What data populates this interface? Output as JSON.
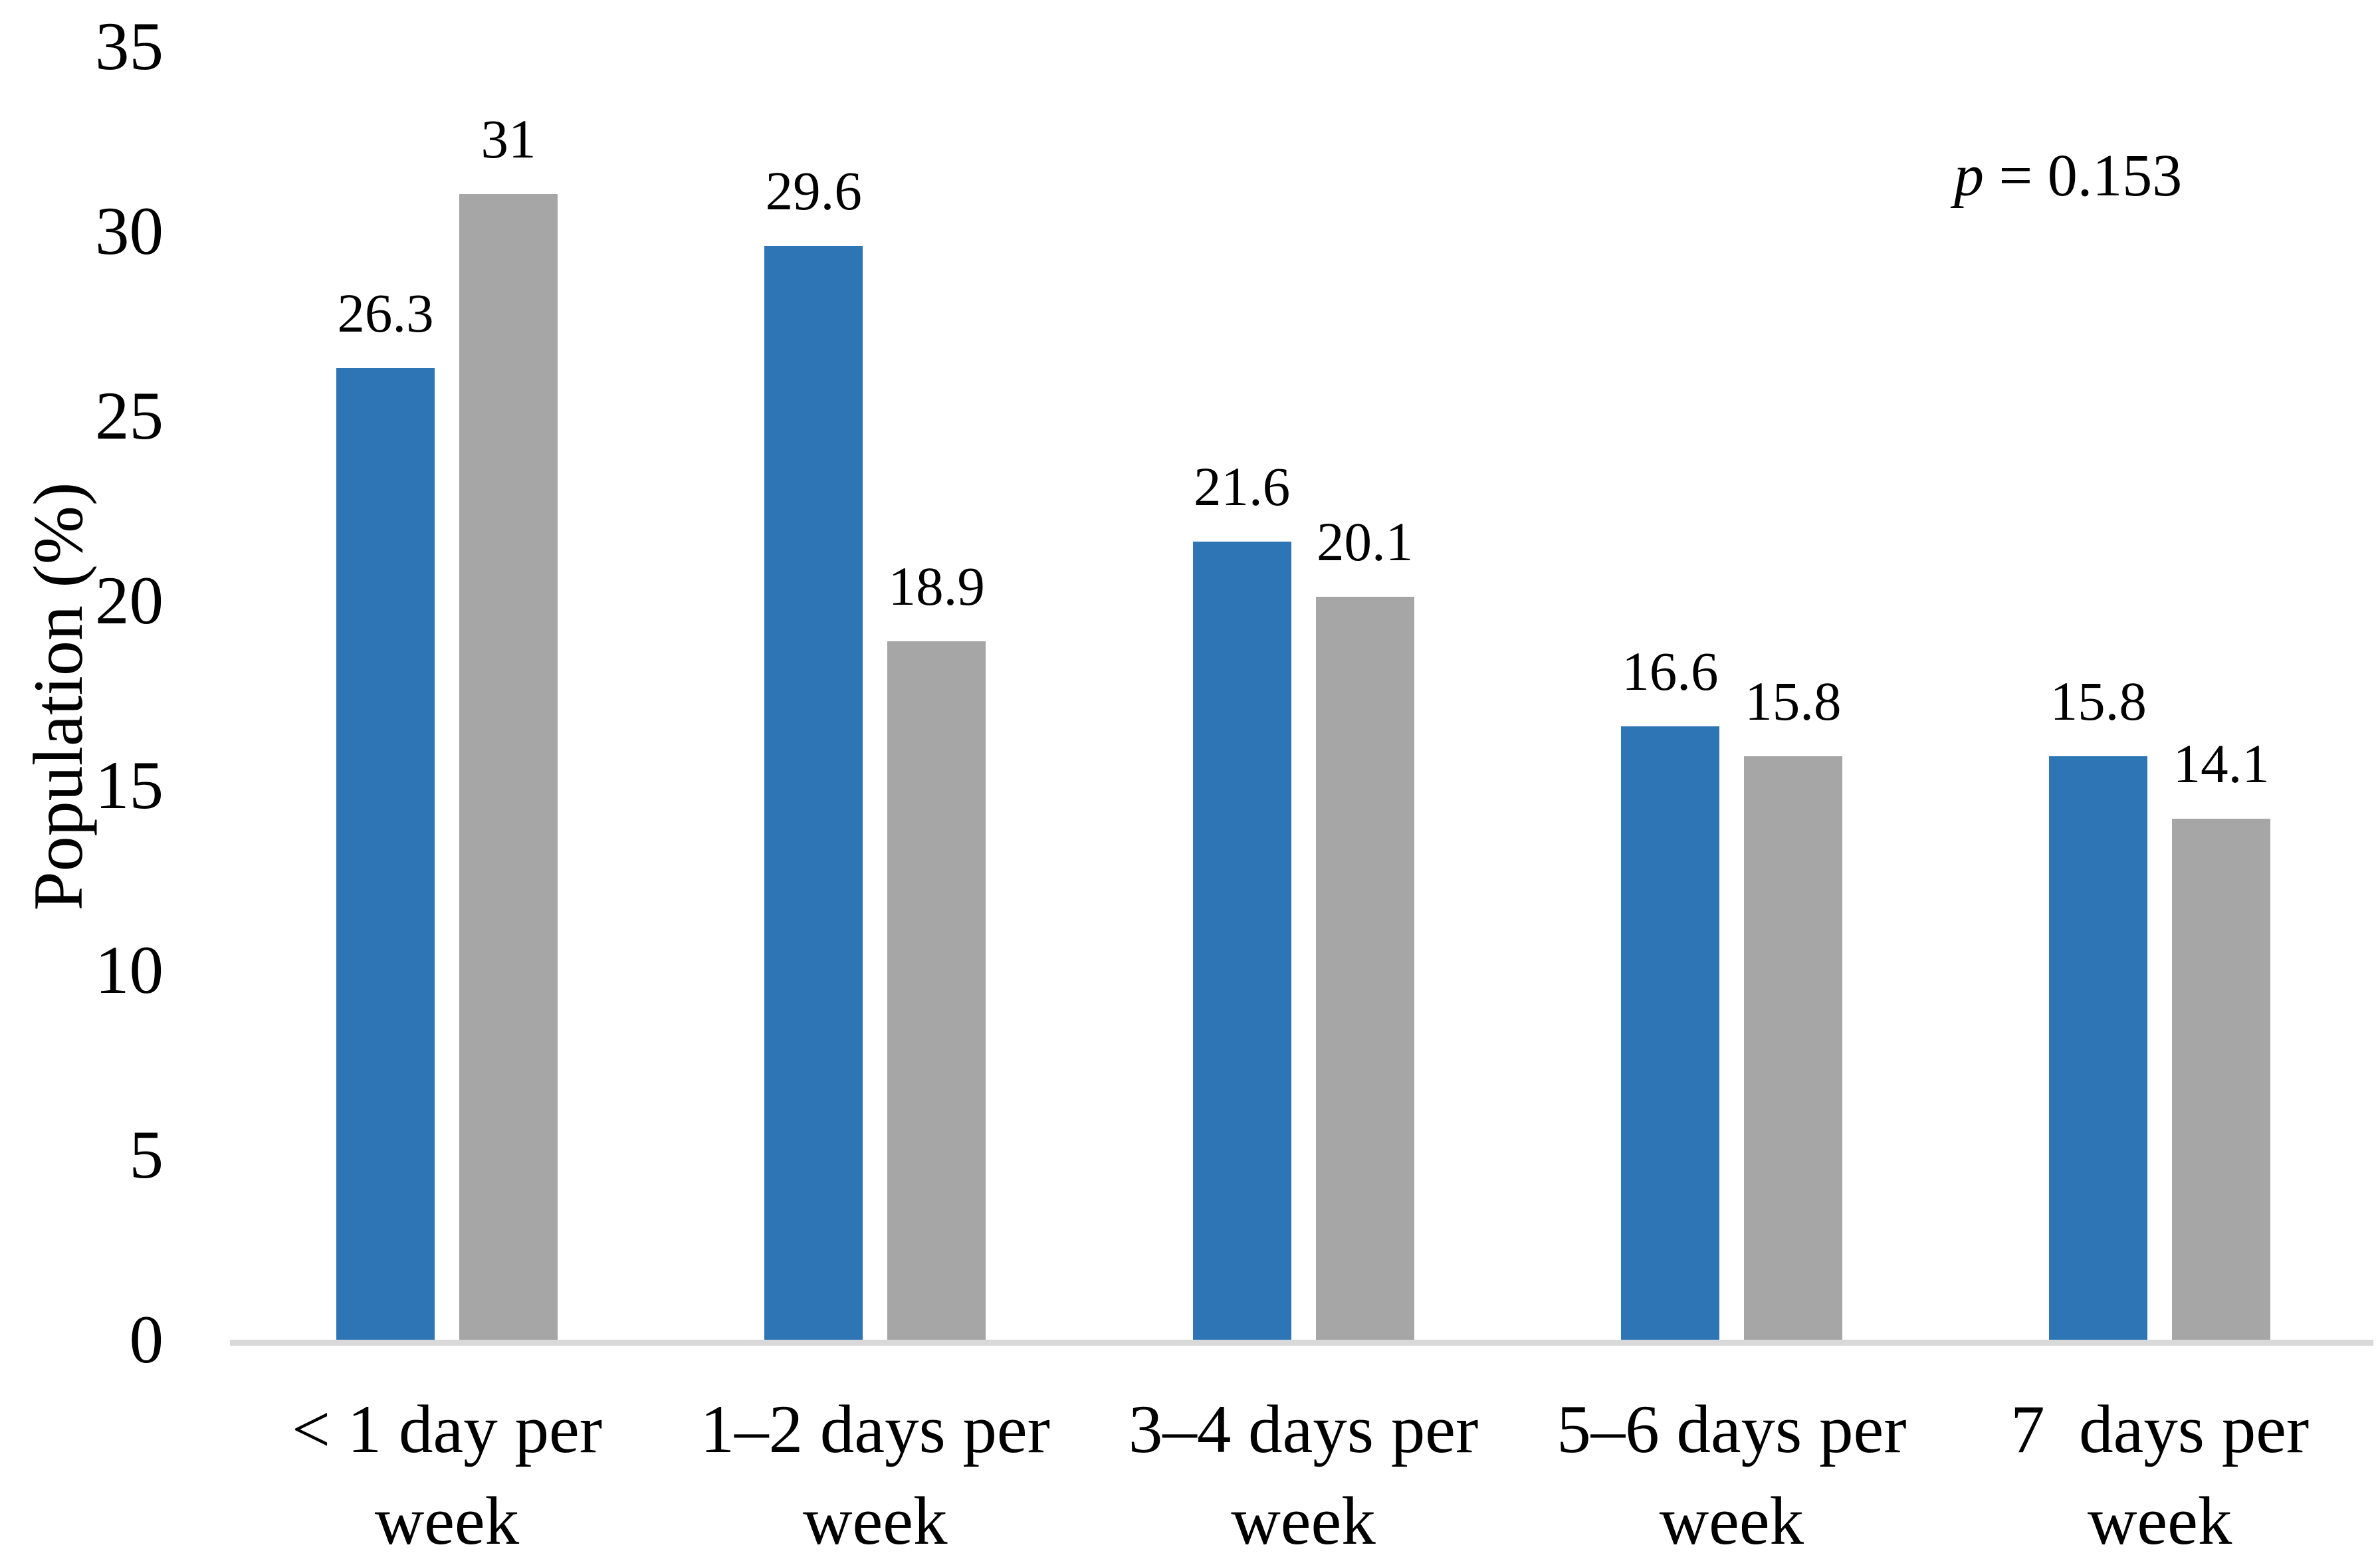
{
  "figure": {
    "background_color": "#ffffff",
    "text_color": "#000000",
    "annotation": {
      "symbol": "p",
      "rest": " = 0.153",
      "full_text": "p = 0.153"
    }
  },
  "chart_data": {
    "type": "bar",
    "title": "",
    "xlabel": "",
    "ylabel": "Population (%)",
    "ylim": [
      0,
      35
    ],
    "yticks": [
      0,
      5,
      10,
      15,
      20,
      25,
      30,
      35
    ],
    "grid": false,
    "legend_position": "none",
    "annotation": "p = 0.153",
    "categories": [
      "< 1 day per week",
      "1–2 days per week",
      "3–4 days per week",
      "5–6 days per week",
      "7 days per week"
    ],
    "category_label_lines": [
      [
        "< 1 day per",
        "week"
      ],
      [
        "1–2 days per",
        "week"
      ],
      [
        "3–4 days per",
        "week"
      ],
      [
        "5–6 days per",
        "week"
      ],
      [
        "7  days per",
        "week"
      ]
    ],
    "series": [
      {
        "name": "blue",
        "color": "#2E75B6",
        "values": [
          26.3,
          29.6,
          21.6,
          16.6,
          15.8
        ]
      },
      {
        "name": "gray",
        "color": "#A6A6A6",
        "values": [
          31,
          18.9,
          20.1,
          15.8,
          14.1
        ]
      }
    ],
    "data_labels_shown": true,
    "axis_line_color": "#D9D9D9"
  }
}
